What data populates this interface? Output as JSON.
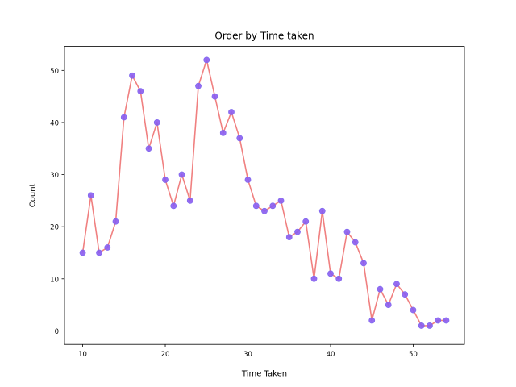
{
  "chart_data": {
    "type": "line",
    "title": "Order by Time taken",
    "xlabel": "Time Taken",
    "ylabel": "Count",
    "xlim": [
      7.8,
      56.2
    ],
    "ylim": [
      -2.6,
      54.6
    ],
    "xticks": [
      10,
      20,
      30,
      40,
      50
    ],
    "yticks": [
      0,
      10,
      20,
      30,
      40,
      50
    ],
    "grid": false,
    "colors": {
      "line": "#f08080",
      "marker_fill": "#8a5cf0",
      "marker_edge": "#7b68ee"
    },
    "series": [
      {
        "x": [
          10,
          11,
          12,
          13,
          14,
          15,
          16,
          17,
          18,
          19,
          20,
          21,
          22,
          23,
          24,
          25,
          26,
          27,
          28,
          29,
          30,
          31,
          32,
          33,
          34,
          35,
          36,
          37,
          38,
          39,
          40,
          41,
          42,
          43,
          44,
          45,
          46,
          47,
          48,
          49,
          50,
          51,
          52,
          53,
          54
        ],
        "values": [
          15,
          26,
          15,
          16,
          21,
          41,
          49,
          46,
          35,
          40,
          29,
          24,
          30,
          25,
          47,
          52,
          45,
          38,
          42,
          37,
          29,
          24,
          23,
          24,
          25,
          18,
          19,
          21,
          10,
          23,
          11,
          10,
          19,
          17,
          13,
          2,
          8,
          5,
          9,
          7,
          4,
          1,
          1,
          2,
          2
        ]
      }
    ]
  }
}
